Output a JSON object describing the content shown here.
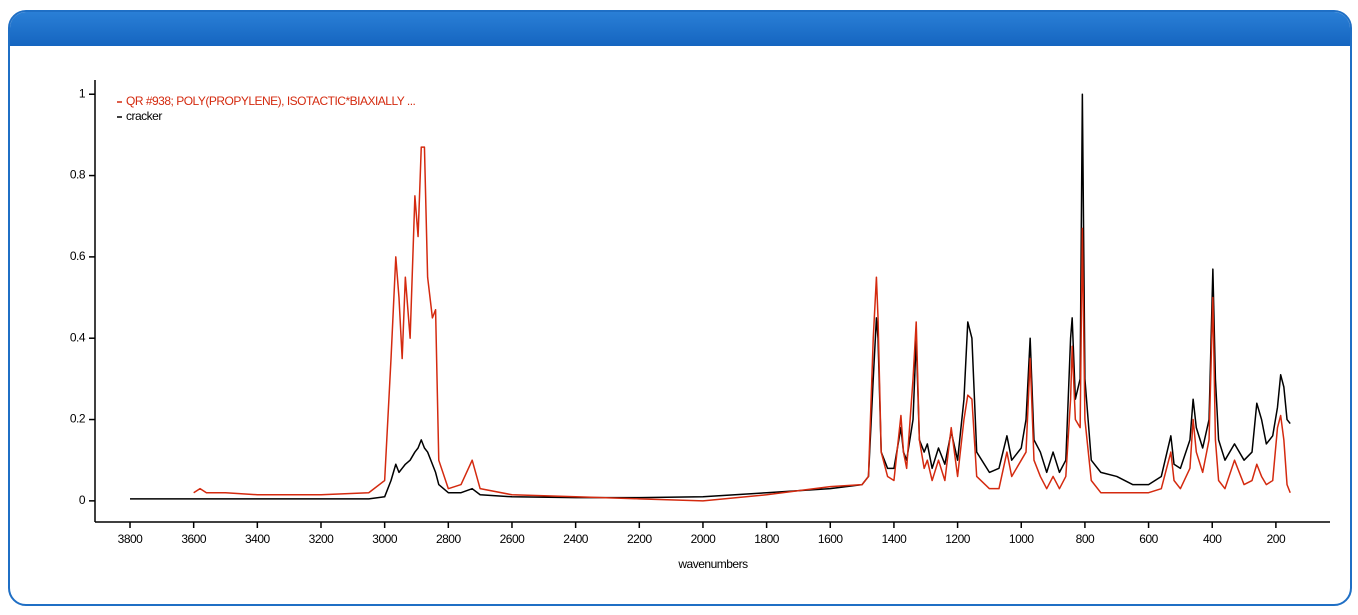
{
  "chart_data": {
    "type": "line",
    "x_label": "wavenumbers",
    "xlim": [
      3910,
      30
    ],
    "ylim": [
      -0.052,
      1.035
    ],
    "xticks": [
      3800,
      3600,
      3400,
      3200,
      3000,
      2800,
      2600,
      2400,
      2200,
      2000,
      1800,
      1600,
      1400,
      1200,
      1000,
      800,
      600,
      400,
      200
    ],
    "yticks": [
      0,
      0.2,
      0.4,
      0.6,
      0.8,
      1
    ],
    "legend": "upper-left",
    "x": [
      3800,
      3700,
      3600,
      3580,
      3560,
      3500,
      3400,
      3200,
      3050,
      3000,
      2980,
      2965,
      2955,
      2945,
      2935,
      2920,
      2905,
      2895,
      2885,
      2875,
      2865,
      2850,
      2840,
      2830,
      2800,
      2760,
      2725,
      2700,
      2600,
      2400,
      2200,
      2000,
      1800,
      1600,
      1500,
      1480,
      1465,
      1455,
      1450,
      1440,
      1420,
      1400,
      1378,
      1370,
      1360,
      1340,
      1330,
      1320,
      1305,
      1295,
      1280,
      1260,
      1240,
      1220,
      1200,
      1180,
      1168,
      1155,
      1140,
      1100,
      1070,
      1045,
      1030,
      1000,
      985,
      972,
      960,
      940,
      920,
      900,
      880,
      860,
      845,
      840,
      830,
      815,
      808,
      800,
      780,
      750,
      700,
      650,
      600,
      560,
      530,
      520,
      500,
      470,
      460,
      450,
      430,
      410,
      398,
      390,
      380,
      360,
      330,
      300,
      275,
      260,
      245,
      230,
      210,
      195,
      185,
      175,
      165,
      155
    ],
    "series": [
      {
        "name": "cracker",
        "color": "#000000",
        "values": [
          0.005,
          0.005,
          0.005,
          0.005,
          0.005,
          0.005,
          0.005,
          0.005,
          0.005,
          0.01,
          0.05,
          0.09,
          0.07,
          0.08,
          0.09,
          0.1,
          0.12,
          0.13,
          0.15,
          0.13,
          0.12,
          0.09,
          0.07,
          0.04,
          0.02,
          0.02,
          0.03,
          0.015,
          0.01,
          0.008,
          0.008,
          0.01,
          0.02,
          0.03,
          0.04,
          0.06,
          0.3,
          0.45,
          0.4,
          0.12,
          0.08,
          0.08,
          0.18,
          0.12,
          0.1,
          0.2,
          0.4,
          0.15,
          0.12,
          0.14,
          0.08,
          0.13,
          0.09,
          0.17,
          0.1,
          0.25,
          0.44,
          0.4,
          0.12,
          0.07,
          0.08,
          0.16,
          0.1,
          0.13,
          0.2,
          0.4,
          0.15,
          0.12,
          0.07,
          0.12,
          0.07,
          0.1,
          0.4,
          0.45,
          0.25,
          0.3,
          1.0,
          0.3,
          0.1,
          0.07,
          0.06,
          0.04,
          0.04,
          0.06,
          0.16,
          0.09,
          0.08,
          0.15,
          0.25,
          0.18,
          0.13,
          0.2,
          0.57,
          0.3,
          0.15,
          0.1,
          0.14,
          0.1,
          0.12,
          0.24,
          0.2,
          0.14,
          0.16,
          0.23,
          0.31,
          0.28,
          0.2,
          0.19
        ]
      },
      {
        "name": "QR #938; POLY(PROPYLENE), ISOTACTIC*BIAXIALLY ...",
        "color": "#d42a0f",
        "values": [
          null,
          null,
          0.02,
          0.03,
          0.02,
          0.02,
          0.015,
          0.015,
          0.02,
          0.05,
          0.35,
          0.6,
          0.5,
          0.35,
          0.55,
          0.4,
          0.75,
          0.65,
          0.87,
          0.87,
          0.55,
          0.45,
          0.47,
          0.1,
          0.03,
          0.04,
          0.1,
          0.03,
          0.015,
          0.01,
          0.005,
          0.0,
          0.015,
          0.035,
          0.04,
          0.06,
          0.4,
          0.55,
          0.45,
          0.12,
          0.06,
          0.05,
          0.21,
          0.12,
          0.08,
          0.3,
          0.44,
          0.15,
          0.08,
          0.1,
          0.05,
          0.1,
          0.05,
          0.18,
          0.06,
          0.2,
          0.26,
          0.25,
          0.06,
          0.03,
          0.03,
          0.12,
          0.06,
          0.1,
          0.12,
          0.35,
          0.1,
          0.06,
          0.03,
          0.06,
          0.03,
          0.06,
          0.25,
          0.38,
          0.2,
          0.18,
          0.67,
          0.2,
          0.05,
          0.02,
          0.02,
          0.02,
          0.02,
          0.03,
          0.12,
          0.05,
          0.03,
          0.08,
          0.2,
          0.12,
          0.07,
          0.15,
          0.5,
          0.15,
          0.05,
          0.03,
          0.1,
          0.04,
          0.05,
          0.09,
          0.06,
          0.04,
          0.05,
          0.18,
          0.21,
          0.15,
          0.04,
          0.02
        ]
      }
    ]
  }
}
